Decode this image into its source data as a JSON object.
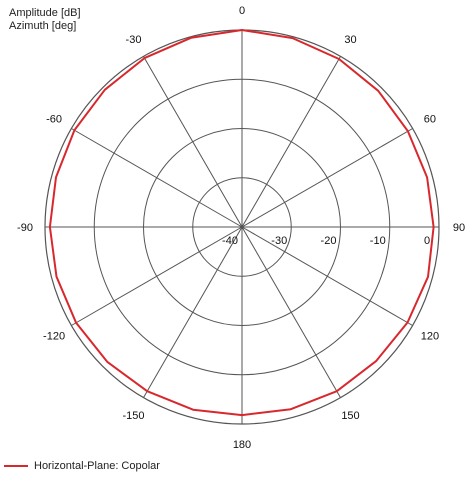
{
  "chart_data": {
    "type": "polar",
    "y_label": "Amplitude [dB]",
    "x_label": "Azimuth [deg]",
    "radial_range": [
      -40,
      0
    ],
    "radial_ticks": [
      -40,
      -30,
      -20,
      -10,
      0
    ],
    "radial_tick_labels": [
      "-40",
      "-30",
      "-20",
      "-10",
      "0"
    ],
    "angle_ticks": [
      0,
      30,
      60,
      90,
      120,
      150,
      180,
      -150,
      -120,
      -90,
      -60,
      -30
    ],
    "angle_tick_labels": [
      "0",
      "30",
      "60",
      "90",
      "120",
      "150",
      "180",
      "-150",
      "-120",
      "-90",
      "-60",
      "-30"
    ],
    "grid": true,
    "legend_position": "bottom-left",
    "series": [
      {
        "name": "Horizontal-Plane: Copolar",
        "color": "#d8282d",
        "azimuth": [
          0,
          15,
          30,
          45,
          60,
          75,
          90,
          105,
          120,
          135,
          150,
          165,
          180,
          -165,
          -150,
          -135,
          -120,
          -105,
          -90,
          -75,
          -60,
          -45,
          -30,
          -15
        ],
        "amplitude": [
          0,
          -0.3,
          -0.6,
          -0.9,
          -1.1,
          -1.1,
          -1.1,
          -0.9,
          -1.2,
          -1.5,
          -1.5,
          -1.7,
          -1.8,
          -1.6,
          -1.5,
          -1.3,
          -1.1,
          -1.0,
          -1.0,
          -0.9,
          -0.7,
          -0.6,
          -0.4,
          -0.2
        ]
      }
    ]
  }
}
